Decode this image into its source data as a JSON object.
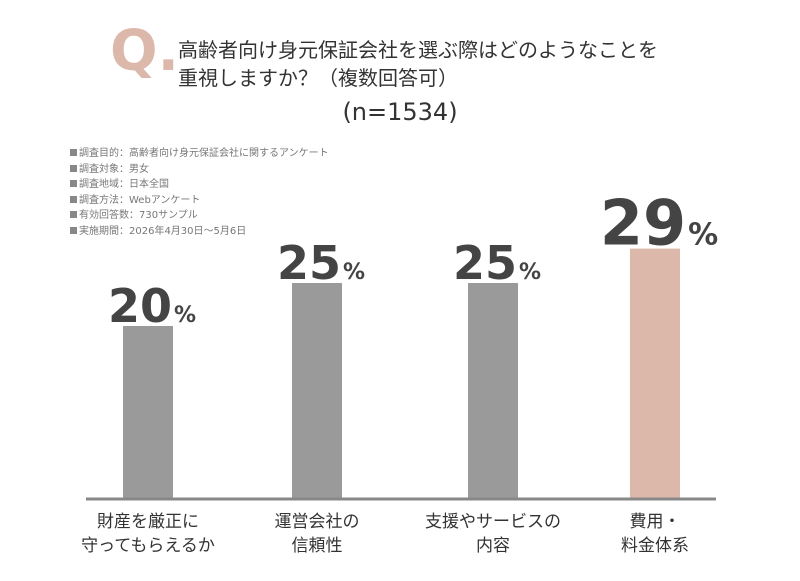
{
  "question": {
    "mark": "Q.",
    "line1": "高齢者向け身元保証会社を選ぶ際はどのようなことを",
    "line2": "重視しますか？（複数回答可）",
    "sample": "(n=1534)"
  },
  "meta": [
    "調査目的：高齢者向け身元保証会社に関するアンケート",
    "調査対象：男女",
    "調査地域：日本全国",
    "調査方法：Webアンケート",
    "有効回答数：730サンプル",
    "実施期間：2026年4月30日～5月6日"
  ],
  "colors": {
    "bar": "#9a9a9a",
    "highlight": "#dcb8aa",
    "axis": "#888888",
    "value_text": "#444444"
  },
  "chart_data": {
    "type": "bar",
    "categories": [
      [
        "財産を厳正に",
        "守ってもらえるか"
      ],
      [
        "運営会社の",
        "信頼性"
      ],
      [
        "支援やサービスの",
        "内容"
      ],
      [
        "費用・",
        "料金体系"
      ]
    ],
    "values": [
      20,
      25,
      25,
      29
    ],
    "value_labels": [
      "20",
      "25",
      "25",
      "29"
    ],
    "unit": "%",
    "highlight_index": 3,
    "ylim": [
      0,
      30
    ],
    "grid": false
  }
}
